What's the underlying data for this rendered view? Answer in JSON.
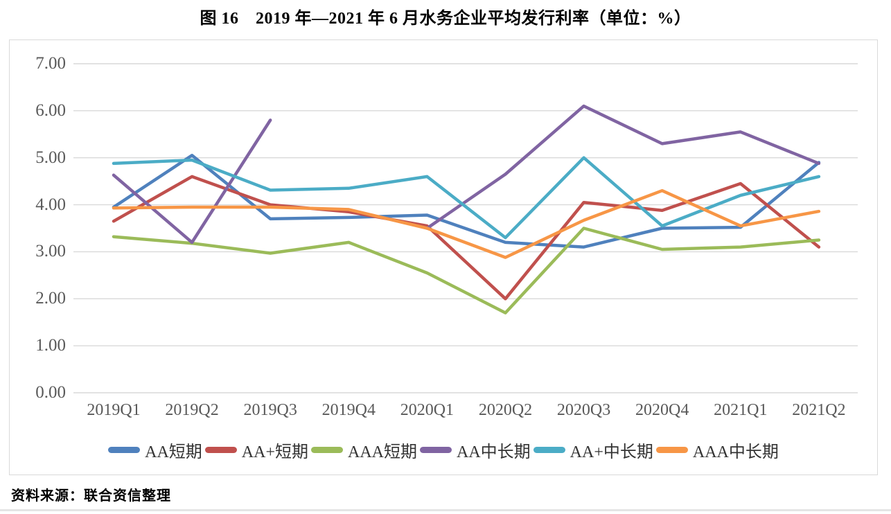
{
  "title": "图 16　2019 年—2021 年 6 月水务企业平均发行利率（单位：%）",
  "source": "资料来源：联合资信整理",
  "chart_data": {
    "type": "line",
    "categories": [
      "2019Q1",
      "2019Q2",
      "2019Q3",
      "2019Q4",
      "2020Q1",
      "2020Q2",
      "2020Q3",
      "2020Q4",
      "2021Q1",
      "2021Q2"
    ],
    "series": [
      {
        "name": "AA短期",
        "color": "#4F81BD",
        "values": [
          3.95,
          5.05,
          3.7,
          3.73,
          3.78,
          3.2,
          3.1,
          3.5,
          3.52,
          4.9
        ]
      },
      {
        "name": "AA+短期",
        "color": "#C0504D",
        "values": [
          3.65,
          4.6,
          4.0,
          3.85,
          3.55,
          2.0,
          4.05,
          3.88,
          4.45,
          3.1
        ]
      },
      {
        "name": "AAA短期",
        "color": "#9BBB59",
        "values": [
          3.32,
          3.18,
          2.97,
          3.2,
          2.55,
          1.7,
          3.5,
          3.05,
          3.1,
          3.25
        ]
      },
      {
        "name": "AA中长期",
        "color": "#8064A2",
        "values": [
          4.63,
          3.2,
          5.8,
          null,
          3.5,
          4.65,
          6.1,
          5.3,
          5.55,
          4.88
        ]
      },
      {
        "name": "AA+中长期",
        "color": "#4BACC6",
        "values": [
          4.88,
          4.95,
          4.31,
          4.35,
          4.6,
          3.3,
          5.0,
          3.55,
          4.2,
          4.6
        ]
      },
      {
        "name": "AAA中长期",
        "color": "#F79646",
        "values": [
          3.93,
          3.95,
          3.95,
          3.9,
          3.5,
          2.88,
          3.67,
          4.3,
          3.55,
          3.86
        ]
      }
    ],
    "ylim": [
      0,
      7
    ],
    "ytick_step": 1,
    "ytick_labels": [
      "0.00",
      "1.00",
      "2.00",
      "3.00",
      "4.00",
      "5.00",
      "6.00",
      "7.00"
    ],
    "xlabel": "",
    "ylabel": "",
    "grid": "horizontal",
    "gridline_color": "#d9d9d9",
    "legend_position": "bottom",
    "line_width": 4.5
  }
}
